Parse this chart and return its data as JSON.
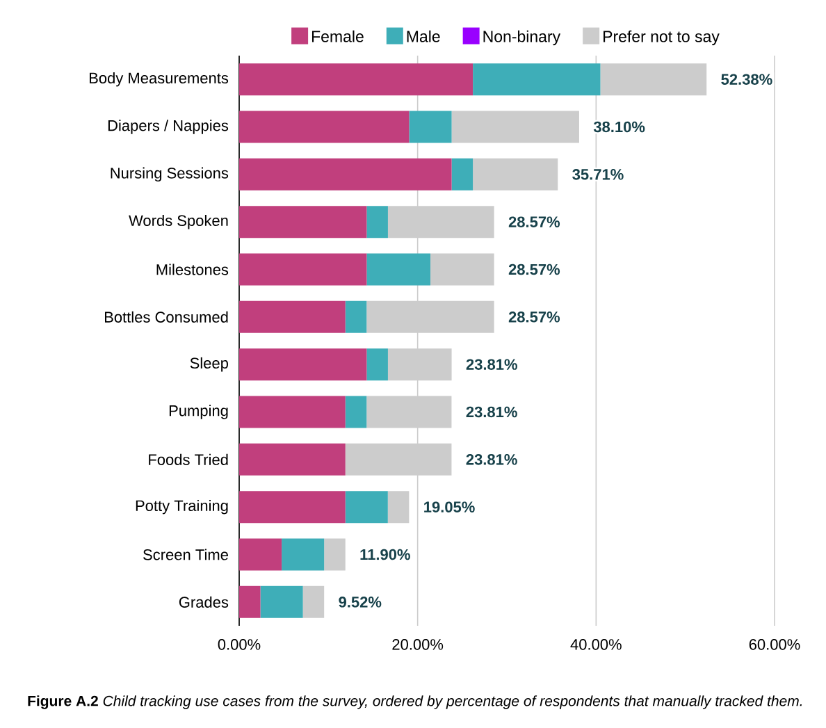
{
  "chart_data": {
    "type": "bar",
    "orientation": "horizontal",
    "stacked": true,
    "categories": [
      "Body Measurements",
      "Diapers / Nappies",
      "Nursing Sessions",
      "Words Spoken",
      "Milestones",
      "Bottles Consumed",
      "Sleep",
      "Pumping",
      "Foods Tried",
      "Potty Training",
      "Screen Time",
      "Grades"
    ],
    "series": [
      {
        "name": "Female",
        "color": "#c13f7d",
        "values": [
          26.19,
          19.05,
          23.81,
          14.29,
          14.29,
          11.9,
          14.29,
          11.9,
          11.9,
          11.9,
          4.76,
          2.38
        ]
      },
      {
        "name": "Male",
        "color": "#3eaeb8",
        "values": [
          14.29,
          4.76,
          2.38,
          2.38,
          7.14,
          2.38,
          2.38,
          2.38,
          0,
          4.76,
          4.76,
          4.76
        ]
      },
      {
        "name": "Non-binary",
        "color": "#9900ff",
        "values": [
          0,
          0,
          0,
          0,
          0,
          0,
          0,
          0,
          0,
          0,
          0,
          0
        ]
      },
      {
        "name": "Prefer not to say",
        "color": "#cccccc",
        "values": [
          11.9,
          14.29,
          9.52,
          11.9,
          7.14,
          14.29,
          7.14,
          9.52,
          11.9,
          2.38,
          2.38,
          2.38
        ]
      }
    ],
    "totals": [
      "52.38%",
      "38.10%",
      "35.71%",
      "28.57%",
      "28.57%",
      "28.57%",
      "23.81%",
      "23.81%",
      "23.81%",
      "19.05%",
      "11.90%",
      "9.52%"
    ],
    "xlim": [
      0,
      60
    ],
    "xticks": [
      {
        "value": 0,
        "label": "0.00%"
      },
      {
        "value": 20,
        "label": "20.00%"
      },
      {
        "value": 40,
        "label": "40.00%"
      },
      {
        "value": 60,
        "label": "60.00%"
      }
    ],
    "grid": "x",
    "legend": "top",
    "annotations": [
      "**Figure A.2** *Child tracking use cases from the survey, ordered by percentage of respondents that manually tracked them.*"
    ]
  }
}
